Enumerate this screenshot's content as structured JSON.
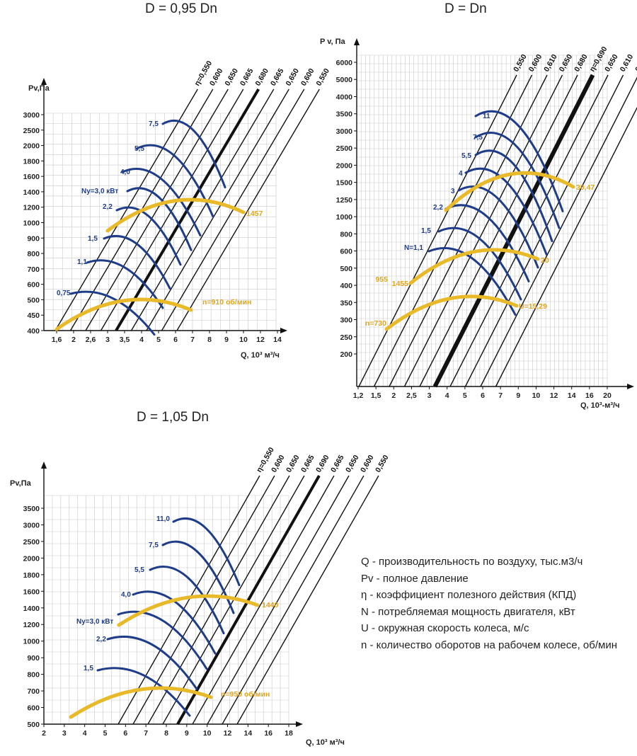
{
  "colors": {
    "power_curve": "#1f3c88",
    "speed_curve": "#e8b928",
    "speed_label": "#e2a419",
    "grid": "#c9c9c9"
  },
  "chart_data": [
    {
      "type": "line",
      "title": "D = 0,95 Dn",
      "ylabel": "Pv,Па",
      "xlabel": "Q, 10³ м³/ч",
      "x_ticks": [
        "1,6",
        "2",
        "2,6",
        "3",
        "3,5",
        "4",
        "5",
        "6",
        "7",
        "8",
        "9",
        "10",
        "12",
        "14"
      ],
      "y_ticks": [
        "3000",
        "2500",
        "2000",
        "1800",
        "1600",
        "1400",
        "1200",
        "1000",
        "900",
        "800",
        "700",
        "600",
        "500",
        "450",
        "400"
      ],
      "efficiency_labels": [
        "η=0,550",
        "0,600",
        "0,650",
        "0,665",
        "0,680",
        "0,665",
        "0,650",
        "0,600",
        "0,550"
      ],
      "power_labels": [
        "7,5",
        "5,5",
        "4,0",
        "Nу=3,0 кВт",
        "2,2",
        "1,5",
        "1,1",
        "0,75"
      ],
      "speed_labels": [
        "1457",
        "n=910 об/мин"
      ]
    },
    {
      "type": "line",
      "title": "D = Dn",
      "ylabel": "P v, Па",
      "xlabel": "Q, 10³-м³/ч",
      "x_ticks": [
        "1,2",
        "1,5",
        "2",
        "2,5",
        "3",
        "4",
        "5",
        "6",
        "7",
        "9",
        "10",
        "12",
        "14",
        "16",
        "20"
      ],
      "y_ticks": [
        "6000",
        "5000",
        "4000",
        "3500",
        "3000",
        "2500",
        "2000",
        "1500",
        "1250",
        "1000",
        "800",
        "600",
        "500",
        "400",
        "350",
        "300",
        "250",
        "200"
      ],
      "efficiency_labels": [
        "0,550",
        "0,600",
        "0,610",
        "0,650",
        "0,680",
        "η=0,690",
        "0,650",
        "0,610",
        "0,600",
        "0,550"
      ],
      "power_labels": [
        "11",
        "7,5",
        "5,5",
        "4",
        "3",
        "2,2",
        "1,5",
        "N=1,1"
      ],
      "speed_labels": [
        "30,47",
        "1455",
        "20",
        "955",
        "U=15,29",
        "n=730"
      ]
    },
    {
      "type": "line",
      "title": "D = 1,05 Dn",
      "ylabel": "Pv,Па",
      "xlabel": "Q, 10³ м³/ч",
      "x_ticks": [
        "2",
        "3",
        "4",
        "5",
        "6",
        "7",
        "8",
        "9",
        "10",
        "12",
        "14",
        "16",
        "18"
      ],
      "y_ticks": [
        "3500",
        "3000",
        "2500",
        "2000",
        "1800",
        "1600",
        "1400",
        "1200",
        "1000",
        "900",
        "800",
        "700",
        "600",
        "500"
      ],
      "efficiency_labels": [
        "η=0,550",
        "0,600",
        "0,650",
        "0,665",
        "0,690",
        "0,665",
        "0,650",
        "0,600",
        "0,550"
      ],
      "power_labels": [
        "11,0",
        "7,5",
        "5,5",
        "4,0",
        "Nу=3,0 кВт",
        "2,2",
        "1,5"
      ],
      "speed_labels": [
        "1440",
        "n=950 об/мин"
      ]
    }
  ],
  "legend": [
    "Q - производительность по воздуху, тыс.м3/ч",
    "Pv - полное давление",
    "η - коэффициент полезного действия (КПД)",
    "N - потребляемая мощность двигателя, кВт",
    "U - окружная скорость колеса, м/с",
    "n - количество оборотов на рабочем колесе, об/мин"
  ]
}
